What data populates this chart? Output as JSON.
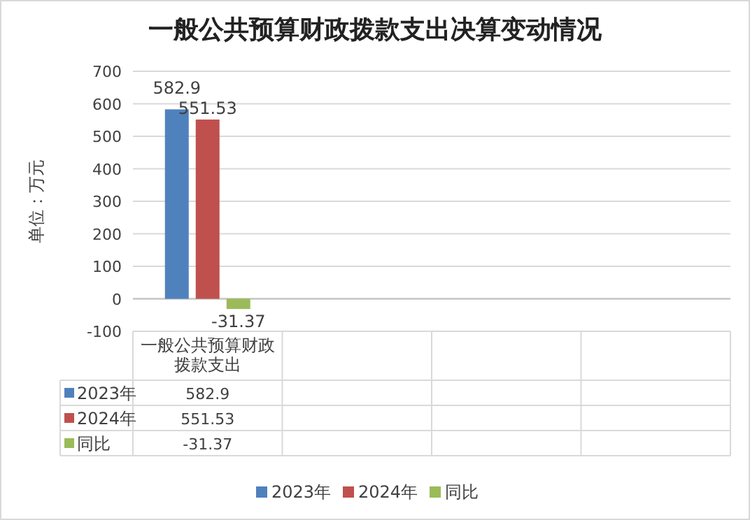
{
  "chart_data": {
    "type": "bar",
    "title": "一般公共预算财政拨款支出决算变动情况",
    "ylabel": "单位：万元",
    "categories": [
      "一般公共预算财政拨款支出",
      null,
      null,
      null
    ],
    "series": [
      {
        "name": "2023年",
        "color": "#4f81bd",
        "values": [
          582.9,
          null,
          null,
          null
        ],
        "value_labels": [
          "582.9",
          null,
          null,
          null
        ]
      },
      {
        "name": "2024年",
        "color": "#c0504d",
        "values": [
          551.53,
          null,
          null,
          null
        ],
        "value_labels": [
          "551.53",
          null,
          null,
          null
        ]
      },
      {
        "name": "同比",
        "color": "#9bbb59",
        "values": [
          -31.37,
          null,
          null,
          null
        ],
        "value_labels": [
          "-31.37",
          null,
          null,
          null
        ]
      }
    ],
    "ylim": [
      -100,
      700
    ],
    "yticks": [
      -100,
      0,
      100,
      200,
      300,
      400,
      500,
      600,
      700
    ],
    "grid": "y",
    "legend": "bottom",
    "data_labels": true
  }
}
